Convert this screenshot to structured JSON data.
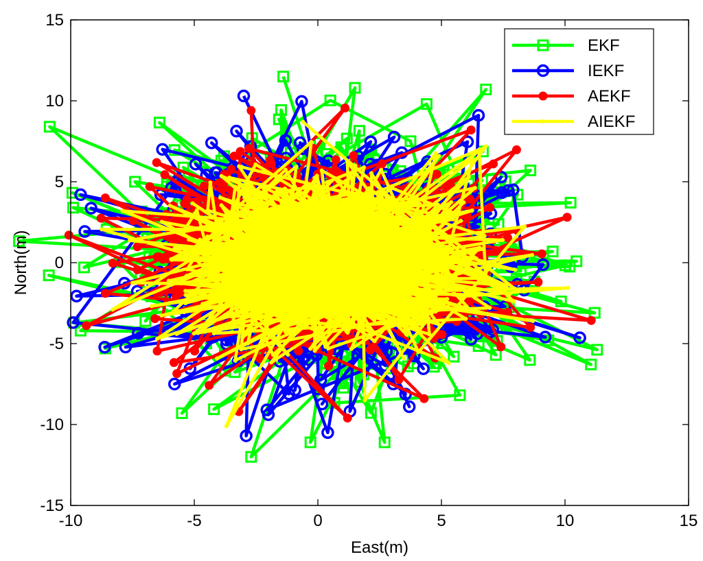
{
  "chart_data": {
    "type": "line",
    "xlabel": "East(m)",
    "ylabel": "North(m)",
    "xlim": [
      -10,
      15
    ],
    "ylim": [
      -15,
      15
    ],
    "xticks": [
      "-10",
      "-5",
      "0",
      "5",
      "10",
      "15"
    ],
    "yticks": [
      "15",
      "10",
      "5",
      "0",
      "-5",
      "-10",
      "-15"
    ],
    "grid": false,
    "legend_position": "top-right",
    "cloud": {
      "center": [
        0.5,
        0.2
      ],
      "spread": [
        3.6,
        3.1
      ],
      "points_per_series": 900
    },
    "series": [
      {
        "name": "EKF",
        "color": "#00ff00",
        "marker": "square",
        "sample_points": [
          [
            -1.4,
            11.5
          ],
          [
            -2.7,
            -12.0
          ],
          [
            11.2,
            -3.1
          ],
          [
            6.8,
            10.7
          ],
          [
            1.5,
            10.8
          ],
          [
            -9.9,
            3.4
          ],
          [
            -9.6,
            -4.2
          ],
          [
            -5.5,
            -9.3
          ],
          [
            -0.3,
            -11.1
          ],
          [
            2.7,
            -11.1
          ],
          [
            8.6,
            5.7
          ],
          [
            7.2,
            -5.7
          ],
          [
            -7.4,
            5.0
          ],
          [
            4.4,
            9.8
          ],
          [
            -8.6,
            -5.3
          ]
        ]
      },
      {
        "name": "IEKF",
        "color": "#0000ff",
        "marker": "circle",
        "sample_points": [
          [
            -3.0,
            10.3
          ],
          [
            9.2,
            -4.6
          ],
          [
            -9.6,
            4.2
          ],
          [
            -9.9,
            -3.7
          ],
          [
            0.4,
            -10.5
          ],
          [
            -2.9,
            -10.7
          ],
          [
            6.5,
            9.1
          ],
          [
            7.9,
            4.5
          ],
          [
            -4.3,
            7.4
          ],
          [
            -5.8,
            -7.5
          ],
          [
            7.6,
            0.2
          ],
          [
            3.7,
            -8.9
          ]
        ]
      },
      {
        "name": "AEKF",
        "color": "#ff0000",
        "marker": "circle-filled",
        "sample_points": [
          [
            -2.7,
            9.4
          ],
          [
            6.2,
            8.2
          ],
          [
            -8.6,
            4.0
          ],
          [
            -8.6,
            -1.9
          ],
          [
            8.6,
            -4.0
          ],
          [
            1.2,
            -9.6
          ],
          [
            -3.2,
            -9.2
          ],
          [
            7.1,
            6.1
          ],
          [
            -6.8,
            4.7
          ],
          [
            4.3,
            -8.4
          ]
        ]
      },
      {
        "name": "AIEKF",
        "color": "#ffff00",
        "marker": "dot",
        "sample_points": [
          [
            -0.6,
            8.7
          ],
          [
            6.8,
            7.2
          ],
          [
            -7.9,
            3.2
          ],
          [
            -8.3,
            -2.9
          ],
          [
            8.7,
            -3.6
          ],
          [
            -3.7,
            -10.1
          ],
          [
            1.9,
            -8.5
          ],
          [
            5.3,
            -6.2
          ],
          [
            -6.5,
            -4.7
          ],
          [
            4.9,
            6.6
          ]
        ]
      }
    ]
  }
}
